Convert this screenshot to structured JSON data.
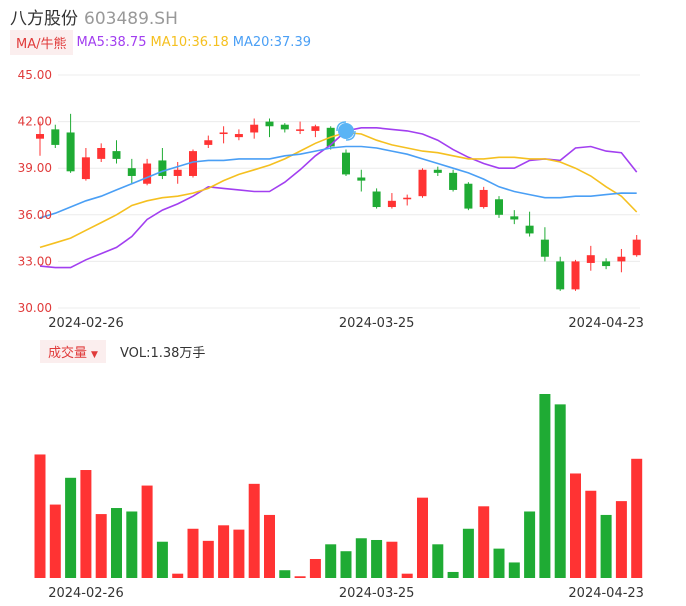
{
  "header": {
    "name": "八方股份",
    "code": "603489.SH"
  },
  "indicators": {
    "badge": "MA/牛熊",
    "ma5": "MA5:38.75",
    "ma10": "MA10:36.18",
    "ma20": "MA20:37.39"
  },
  "volume_panel": {
    "badge": "成交量",
    "label": "VOL:1.38万手"
  },
  "colors": {
    "up": "#ff3333",
    "down": "#1fab34",
    "ma5": "#a23ff0",
    "ma10": "#f5c020",
    "ma20": "#4a9ff5",
    "axis_text": "#e03b3b"
  },
  "chart_data": [
    {
      "type": "candlestick",
      "ylim": [
        30,
        45
      ],
      "yticks": [
        "45.00",
        "42.00",
        "39.00",
        "36.00",
        "33.00",
        "30.00"
      ],
      "xticks": [
        "2024-02-26",
        "2024-03-25",
        "2024-04-23"
      ],
      "candles": [
        {
          "o": 40.9,
          "c": 41.2,
          "h": 42.0,
          "l": 39.8
        },
        {
          "o": 41.5,
          "c": 40.5,
          "h": 41.8,
          "l": 40.3
        },
        {
          "o": 41.3,
          "c": 38.8,
          "h": 42.5,
          "l": 38.7
        },
        {
          "o": 38.3,
          "c": 39.7,
          "h": 40.3,
          "l": 38.2
        },
        {
          "o": 39.6,
          "c": 40.3,
          "h": 40.6,
          "l": 39.4
        },
        {
          "o": 40.1,
          "c": 39.6,
          "h": 40.8,
          "l": 39.3
        },
        {
          "o": 39.0,
          "c": 38.5,
          "h": 39.6,
          "l": 38.0
        },
        {
          "o": 38.0,
          "c": 39.3,
          "h": 39.6,
          "l": 37.9
        },
        {
          "o": 39.5,
          "c": 38.5,
          "h": 40.3,
          "l": 38.3
        },
        {
          "o": 38.5,
          "c": 38.9,
          "h": 39.4,
          "l": 38.0
        },
        {
          "o": 38.5,
          "c": 40.1,
          "h": 40.2,
          "l": 38.4
        },
        {
          "o": 40.5,
          "c": 40.8,
          "h": 41.1,
          "l": 40.3
        },
        {
          "o": 41.2,
          "c": 41.3,
          "h": 41.7,
          "l": 40.6
        },
        {
          "o": 41.0,
          "c": 41.2,
          "h": 41.5,
          "l": 40.8
        },
        {
          "o": 41.3,
          "c": 41.8,
          "h": 42.2,
          "l": 40.9
        },
        {
          "o": 42.0,
          "c": 41.7,
          "h": 42.2,
          "l": 41.0
        },
        {
          "o": 41.8,
          "c": 41.5,
          "h": 41.9,
          "l": 41.3
        },
        {
          "o": 41.4,
          "c": 41.5,
          "h": 42.0,
          "l": 41.2
        },
        {
          "o": 41.4,
          "c": 41.7,
          "h": 41.8,
          "l": 41.0
        },
        {
          "o": 41.6,
          "c": 40.4,
          "h": 41.7,
          "l": 40.2
        },
        {
          "o": 40.0,
          "c": 38.6,
          "h": 40.2,
          "l": 38.5
        },
        {
          "o": 38.4,
          "c": 38.2,
          "h": 38.9,
          "l": 37.5
        },
        {
          "o": 37.5,
          "c": 36.5,
          "h": 37.7,
          "l": 36.4
        },
        {
          "o": 36.5,
          "c": 36.9,
          "h": 37.4,
          "l": 36.4
        },
        {
          "o": 37.0,
          "c": 37.1,
          "h": 37.3,
          "l": 36.6
        },
        {
          "o": 37.2,
          "c": 38.9,
          "h": 39.0,
          "l": 37.1
        },
        {
          "o": 38.9,
          "c": 38.7,
          "h": 39.1,
          "l": 38.5
        },
        {
          "o": 38.7,
          "c": 37.6,
          "h": 38.9,
          "l": 37.5
        },
        {
          "o": 38.0,
          "c": 36.4,
          "h": 38.1,
          "l": 36.3
        },
        {
          "o": 36.5,
          "c": 37.6,
          "h": 37.8,
          "l": 36.4
        },
        {
          "o": 37.0,
          "c": 36.0,
          "h": 37.2,
          "l": 35.8
        },
        {
          "o": 35.9,
          "c": 35.7,
          "h": 36.3,
          "l": 35.4
        },
        {
          "o": 35.3,
          "c": 34.8,
          "h": 36.2,
          "l": 34.6
        },
        {
          "o": 34.4,
          "c": 33.3,
          "h": 35.2,
          "l": 33.0
        },
        {
          "o": 33.0,
          "c": 31.2,
          "h": 33.3,
          "l": 31.1
        },
        {
          "o": 31.2,
          "c": 33.0,
          "h": 33.1,
          "l": 31.1
        },
        {
          "o": 32.9,
          "c": 33.4,
          "h": 34.0,
          "l": 32.4
        },
        {
          "o": 33.0,
          "c": 32.7,
          "h": 33.2,
          "l": 32.5
        },
        {
          "o": 33.0,
          "c": 33.3,
          "h": 33.8,
          "l": 32.3
        },
        {
          "o": 33.4,
          "c": 34.4,
          "h": 34.7,
          "l": 33.3
        }
      ],
      "series": [
        {
          "key": "ma5",
          "values": [
            32.7,
            32.6,
            32.6,
            33.1,
            33.5,
            33.9,
            34.6,
            35.7,
            36.3,
            36.7,
            37.2,
            37.8,
            37.7,
            37.6,
            37.5,
            37.5,
            38.1,
            38.9,
            39.8,
            40.5,
            41.4,
            41.6,
            41.6,
            41.5,
            41.4,
            41.2,
            40.8,
            40.2,
            39.7,
            39.3,
            39.0,
            39.0,
            39.5,
            39.6,
            39.5,
            40.3,
            40.4,
            40.1,
            40.0,
            38.75
          ]
        },
        {
          "key": "ma10",
          "values": [
            33.9,
            34.2,
            34.5,
            35.0,
            35.5,
            36.0,
            36.6,
            36.9,
            37.1,
            37.2,
            37.4,
            37.7,
            38.2,
            38.6,
            38.9,
            39.2,
            39.6,
            40.1,
            40.6,
            41.0,
            41.3,
            41.2,
            40.8,
            40.5,
            40.3,
            40.1,
            40.0,
            39.8,
            39.6,
            39.6,
            39.7,
            39.7,
            39.6,
            39.6,
            39.4,
            39.0,
            38.5,
            37.8,
            37.2,
            36.18
          ]
        },
        {
          "key": "ma20",
          "values": [
            35.8,
            36.1,
            36.5,
            36.9,
            37.2,
            37.6,
            38.0,
            38.4,
            38.8,
            39.1,
            39.4,
            39.5,
            39.5,
            39.6,
            39.6,
            39.6,
            39.8,
            39.9,
            40.1,
            40.3,
            40.4,
            40.4,
            40.3,
            40.1,
            39.9,
            39.6,
            39.3,
            39.0,
            38.7,
            38.3,
            37.8,
            37.5,
            37.3,
            37.1,
            37.1,
            37.2,
            37.2,
            37.3,
            37.4,
            37.39
          ]
        }
      ]
    },
    {
      "type": "bar",
      "title": "成交量",
      "values": [
        1.43,
        0.85,
        1.16,
        1.25,
        0.74,
        0.81,
        0.77,
        1.07,
        0.42,
        0.05,
        0.57,
        0.43,
        0.61,
        0.56,
        1.09,
        0.73,
        0.09,
        0.02,
        0.22,
        0.39,
        0.31,
        0.46,
        0.44,
        0.42,
        0.05,
        0.93,
        0.39,
        0.07,
        0.57,
        0.83,
        0.34,
        0.18,
        0.77,
        2.13,
        2.01,
        1.21,
        1.01,
        0.73,
        0.89,
        1.38
      ],
      "up": [
        1,
        1,
        0,
        1,
        1,
        0,
        0,
        1,
        0,
        1,
        1,
        1,
        1,
        1,
        1,
        1,
        0,
        1,
        1,
        0,
        0,
        0,
        0,
        1,
        1,
        1,
        0,
        0,
        0,
        1,
        0,
        0,
        0,
        0,
        0,
        1,
        1,
        0,
        1,
        1
      ]
    }
  ]
}
